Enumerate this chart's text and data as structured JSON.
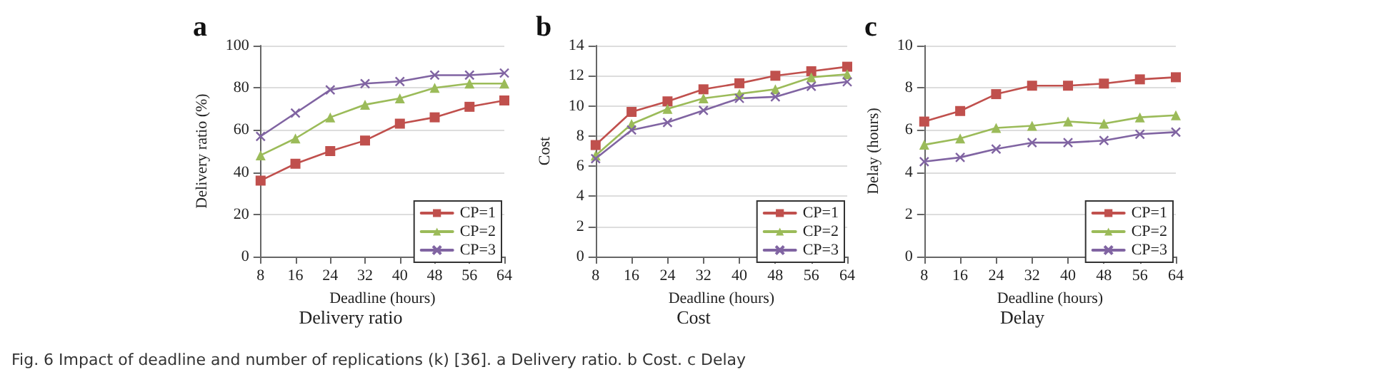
{
  "chart_data": [
    {
      "type": "line",
      "title": "a",
      "subtitle": "Delivery ratio",
      "xlabel": "Deadline (hours)",
      "ylabel": "Delivery ratio (%)",
      "categories": [
        "8",
        "16",
        "24",
        "32",
        "40",
        "48",
        "56",
        "64"
      ],
      "ylim": [
        0,
        100
      ],
      "yticks": [
        0,
        20,
        40,
        60,
        80,
        100
      ],
      "grid": "y",
      "legend": "bottom right",
      "series": [
        {
          "name": "CP=1",
          "color": "#c0504d",
          "marker": "square",
          "values": [
            36,
            44,
            50,
            55,
            63,
            66,
            71,
            74
          ]
        },
        {
          "name": "CP=2",
          "color": "#9bbb59",
          "marker": "triangle",
          "values": [
            48,
            56,
            66,
            72,
            75,
            80,
            82,
            82
          ]
        },
        {
          "name": "CP=3",
          "color": "#8064a2",
          "marker": "cross",
          "values": [
            57,
            68,
            79,
            82,
            83,
            86,
            86,
            87
          ]
        }
      ]
    },
    {
      "type": "line",
      "title": "b",
      "subtitle": "Cost",
      "xlabel": "Deadline (hours)",
      "ylabel": "Cost",
      "categories": [
        "8",
        "16",
        "24",
        "32",
        "40",
        "48",
        "56",
        "64"
      ],
      "ylim": [
        0,
        14
      ],
      "yticks": [
        0,
        2,
        4,
        6,
        8,
        10,
        12,
        14
      ],
      "grid": "y",
      "legend": "bottom right",
      "series": [
        {
          "name": "CP=1",
          "color": "#c0504d",
          "marker": "square",
          "values": [
            7.4,
            9.6,
            10.3,
            11.1,
            11.5,
            12.0,
            12.3,
            12.6
          ]
        },
        {
          "name": "CP=2",
          "color": "#9bbb59",
          "marker": "triangle",
          "values": [
            6.7,
            8.8,
            9.8,
            10.5,
            10.8,
            11.1,
            11.9,
            12.1
          ]
        },
        {
          "name": "CP=3",
          "color": "#8064a2",
          "marker": "cross",
          "values": [
            6.5,
            8.4,
            8.9,
            9.7,
            10.5,
            10.6,
            11.3,
            11.6
          ]
        }
      ]
    },
    {
      "type": "line",
      "title": "c",
      "subtitle": "Delay",
      "xlabel": "Deadline (hours)",
      "ylabel": "Delay (hours)",
      "categories": [
        "8",
        "16",
        "24",
        "32",
        "40",
        "48",
        "56",
        "64"
      ],
      "ylim": [
        0,
        10
      ],
      "yticks": [
        0,
        2,
        4,
        6,
        8,
        10
      ],
      "grid": "y",
      "legend": "bottom right",
      "series": [
        {
          "name": "CP=1",
          "color": "#c0504d",
          "marker": "square",
          "values": [
            6.4,
            6.9,
            7.7,
            8.1,
            8.1,
            8.2,
            8.4,
            8.5
          ]
        },
        {
          "name": "CP=2",
          "color": "#9bbb59",
          "marker": "triangle",
          "values": [
            5.3,
            5.6,
            6.1,
            6.2,
            6.4,
            6.3,
            6.6,
            6.7
          ]
        },
        {
          "name": "CP=3",
          "color": "#8064a2",
          "marker": "cross",
          "values": [
            4.5,
            4.7,
            5.1,
            5.4,
            5.4,
            5.5,
            5.8,
            5.9
          ]
        }
      ],
      "annotations": [
        "Fig. 6 Impact of deadline and number of replications (k) [36]. a Delivery ratio. b Cost. c Delay"
      ]
    }
  ]
}
